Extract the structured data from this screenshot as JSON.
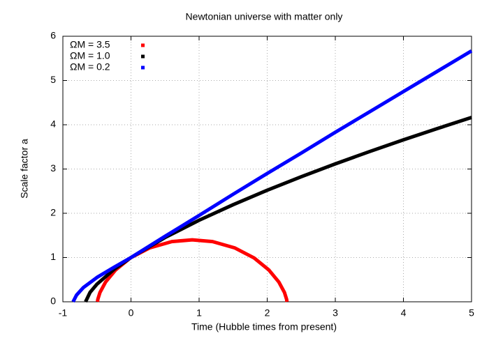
{
  "chart_data": {
    "type": "line",
    "title": "Newtonian universe with matter only",
    "xlabel": "Time (Hubble times from present)",
    "ylabel": "Scale factor a",
    "xlim": [
      -1,
      5
    ],
    "ylim": [
      0,
      6
    ],
    "xticks": [
      -1,
      0,
      1,
      2,
      3,
      4,
      5
    ],
    "yticks": [
      0,
      1,
      2,
      3,
      4,
      5,
      6
    ],
    "grid": true,
    "legend": "upper left",
    "series": [
      {
        "name": "ΩM = 3.5",
        "color": "#ff0000",
        "x": [
          -0.492,
          -0.487,
          -0.455,
          -0.373,
          -0.226,
          -0.009,
          0.272,
          0.6,
          0.899,
          1.198,
          1.526,
          1.807,
          2.024,
          2.171,
          2.253,
          2.285,
          2.29
        ],
        "values": [
          0,
          0.055,
          0.212,
          0.446,
          0.72,
          0.991,
          1.216,
          1.36,
          1.4,
          1.36,
          1.216,
          0.991,
          0.72,
          0.446,
          0.212,
          0.055,
          0
        ]
      },
      {
        "name": "ΩM = 1.0",
        "color": "#000000",
        "x": [
          -0.667,
          -0.6,
          -0.5,
          -0.25,
          0,
          0.5,
          1,
          1.5,
          2,
          2.5,
          3,
          3.5,
          4,
          4.5,
          5
        ],
        "values": [
          0,
          0.215,
          0.397,
          0.731,
          1,
          1.452,
          1.842,
          2.194,
          2.52,
          2.826,
          3.116,
          3.393,
          3.659,
          3.915,
          4.166
        ]
      },
      {
        "name": "ΩM = 0.2",
        "color": "#0000ff",
        "x": [
          -0.85,
          -0.8,
          -0.7,
          -0.5,
          -0.25,
          0,
          0.5,
          1,
          1.5,
          2,
          2.5,
          3,
          3.5,
          4,
          4.5,
          5
        ],
        "values": [
          0,
          0.15,
          0.32,
          0.55,
          0.78,
          1,
          1.48,
          1.95,
          2.43,
          2.9,
          3.36,
          3.83,
          4.29,
          4.75,
          5.21,
          5.67
        ]
      }
    ]
  }
}
